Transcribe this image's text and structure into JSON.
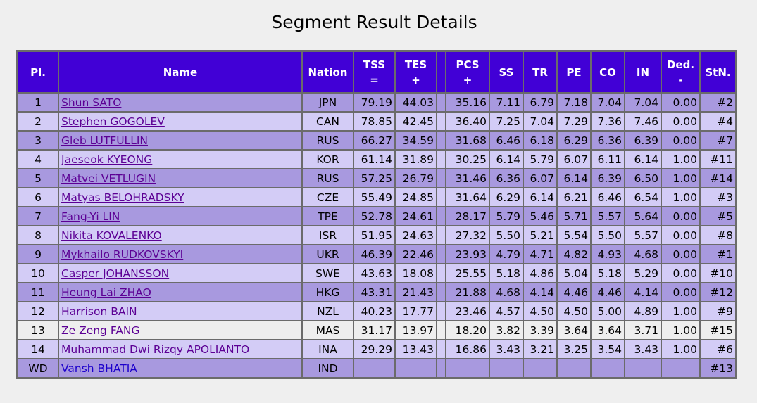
{
  "title": "Segment Result Details",
  "columns": {
    "pl": "Pl.",
    "name": "Name",
    "nation": "Nation",
    "tss": "TSS",
    "tss_sym": "=",
    "tes": "TES",
    "tes_sym": "+",
    "pcs": "PCS",
    "pcs_sym": "+",
    "ss": "SS",
    "tr": "TR",
    "pe": "PE",
    "co": "CO",
    "in": "IN",
    "ded": "Ded.",
    "ded_sym": "-",
    "stn": "StN."
  },
  "rows": [
    {
      "pl": "1",
      "name": "Shun SATO",
      "nation": "JPN",
      "tss": "79.19",
      "tes": "44.03",
      "pcs": "35.16",
      "ss": "7.11",
      "tr": "6.79",
      "pe": "7.18",
      "co": "7.04",
      "in": "7.04",
      "ded": "0.00",
      "stn": "#2"
    },
    {
      "pl": "2",
      "name": "Stephen GOGOLEV",
      "nation": "CAN",
      "tss": "78.85",
      "tes": "42.45",
      "pcs": "36.40",
      "ss": "7.25",
      "tr": "7.04",
      "pe": "7.29",
      "co": "7.36",
      "in": "7.46",
      "ded": "0.00",
      "stn": "#4"
    },
    {
      "pl": "3",
      "name": "Gleb LUTFULLIN",
      "nation": "RUS",
      "tss": "66.27",
      "tes": "34.59",
      "pcs": "31.68",
      "ss": "6.46",
      "tr": "6.18",
      "pe": "6.29",
      "co": "6.36",
      "in": "6.39",
      "ded": "0.00",
      "stn": "#7"
    },
    {
      "pl": "4",
      "name": "Jaeseok KYEONG",
      "nation": "KOR",
      "tss": "61.14",
      "tes": "31.89",
      "pcs": "30.25",
      "ss": "6.14",
      "tr": "5.79",
      "pe": "6.07",
      "co": "6.11",
      "in": "6.14",
      "ded": "1.00",
      "stn": "#11"
    },
    {
      "pl": "5",
      "name": "Matvei VETLUGIN",
      "nation": "RUS",
      "tss": "57.25",
      "tes": "26.79",
      "pcs": "31.46",
      "ss": "6.36",
      "tr": "6.07",
      "pe": "6.14",
      "co": "6.39",
      "in": "6.50",
      "ded": "1.00",
      "stn": "#14"
    },
    {
      "pl": "6",
      "name": "Matyas BELOHRADSKY",
      "nation": "CZE",
      "tss": "55.49",
      "tes": "24.85",
      "pcs": "31.64",
      "ss": "6.29",
      "tr": "6.14",
      "pe": "6.21",
      "co": "6.46",
      "in": "6.54",
      "ded": "1.00",
      "stn": "#3"
    },
    {
      "pl": "7",
      "name": "Fang-Yi LIN",
      "nation": "TPE",
      "tss": "52.78",
      "tes": "24.61",
      "pcs": "28.17",
      "ss": "5.79",
      "tr": "5.46",
      "pe": "5.71",
      "co": "5.57",
      "in": "5.64",
      "ded": "0.00",
      "stn": "#5"
    },
    {
      "pl": "8",
      "name": "Nikita KOVALENKO",
      "nation": "ISR",
      "tss": "51.95",
      "tes": "24.63",
      "pcs": "27.32",
      "ss": "5.50",
      "tr": "5.21",
      "pe": "5.54",
      "co": "5.50",
      "in": "5.57",
      "ded": "0.00",
      "stn": "#8"
    },
    {
      "pl": "9",
      "name": "Mykhailo RUDKOVSKYI",
      "nation": "UKR",
      "tss": "46.39",
      "tes": "22.46",
      "pcs": "23.93",
      "ss": "4.79",
      "tr": "4.71",
      "pe": "4.82",
      "co": "4.93",
      "in": "4.68",
      "ded": "0.00",
      "stn": "#1"
    },
    {
      "pl": "10",
      "name": "Casper JOHANSSON",
      "nation": "SWE",
      "tss": "43.63",
      "tes": "18.08",
      "pcs": "25.55",
      "ss": "5.18",
      "tr": "4.86",
      "pe": "5.04",
      "co": "5.18",
      "in": "5.29",
      "ded": "0.00",
      "stn": "#10"
    },
    {
      "pl": "11",
      "name": "Heung Lai ZHAO",
      "nation": "HKG",
      "tss": "43.31",
      "tes": "21.43",
      "pcs": "21.88",
      "ss": "4.68",
      "tr": "4.14",
      "pe": "4.46",
      "co": "4.46",
      "in": "4.14",
      "ded": "0.00",
      "stn": "#12"
    },
    {
      "pl": "12",
      "name": "Harrison BAIN",
      "nation": "NZL",
      "tss": "40.23",
      "tes": "17.77",
      "pcs": "23.46",
      "ss": "4.57",
      "tr": "4.50",
      "pe": "4.50",
      "co": "5.00",
      "in": "4.89",
      "ded": "1.00",
      "stn": "#9"
    },
    {
      "pl": "13",
      "name": "Ze Zeng FANG",
      "nation": "MAS",
      "tss": "31.17",
      "tes": "13.97",
      "pcs": "18.20",
      "ss": "3.82",
      "tr": "3.39",
      "pe": "3.64",
      "co": "3.64",
      "in": "3.71",
      "ded": "1.00",
      "stn": "#15"
    },
    {
      "pl": "14",
      "name": "Muhammad Dwi Rizqy APOLIANTO",
      "nation": "INA",
      "tss": "29.29",
      "tes": "13.43",
      "pcs": "16.86",
      "ss": "3.43",
      "tr": "3.21",
      "pe": "3.25",
      "co": "3.54",
      "in": "3.43",
      "ded": "1.00",
      "stn": "#6"
    },
    {
      "pl": "WD",
      "name": "Vansh BHATIA",
      "nation": "IND",
      "tss": "",
      "tes": "",
      "pcs": "",
      "ss": "",
      "tr": "",
      "pe": "",
      "co": "",
      "in": "",
      "ded": "",
      "stn": "#13"
    }
  ]
}
